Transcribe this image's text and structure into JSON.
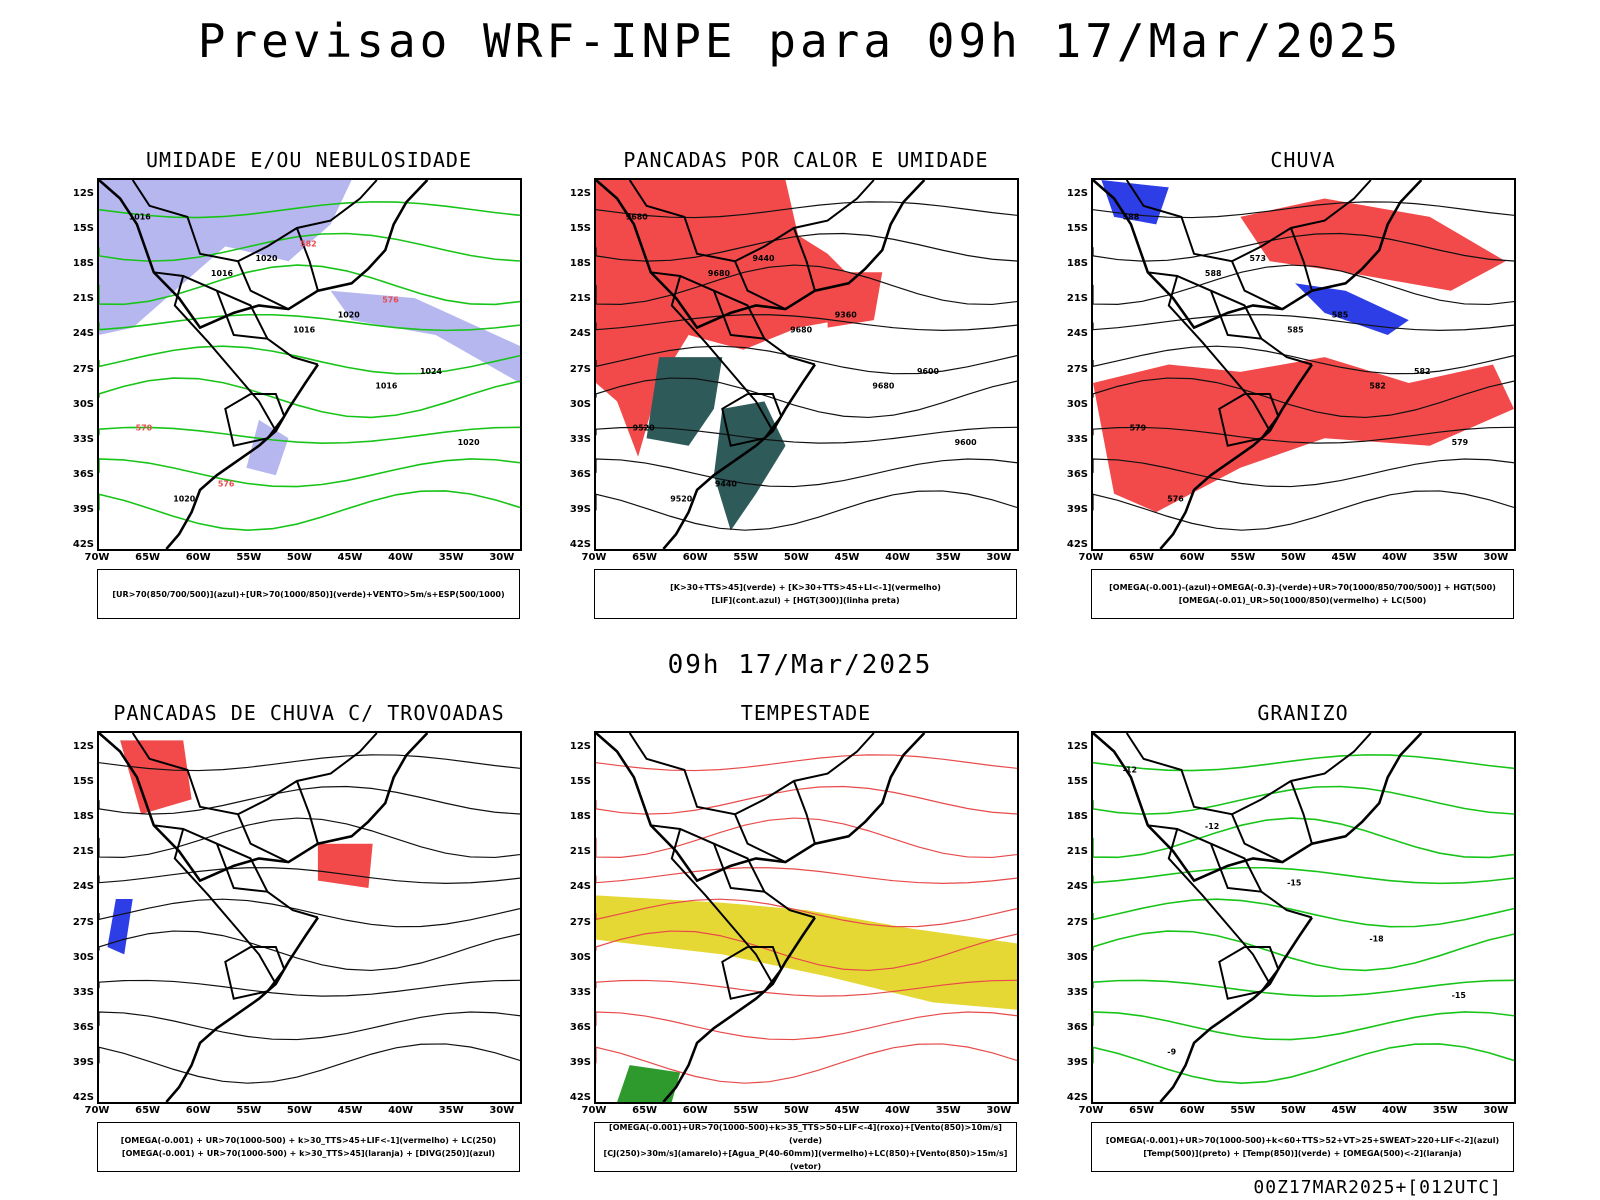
{
  "title": "Previsao WRF-INPE  para 09h 17/Mar/2025",
  "mid_title": "09h 17/Mar/2025",
  "footer": "00Z17MAR2025+[012UTC]",
  "lat_labels": [
    "12S",
    "15S",
    "18S",
    "21S",
    "24S",
    "27S",
    "30S",
    "33S",
    "36S",
    "39S",
    "42S"
  ],
  "lon_labels": [
    "70W",
    "65W",
    "60W",
    "55W",
    "50W",
    "45W",
    "40W",
    "35W",
    "30W"
  ],
  "panels": [
    {
      "title": "UMIDADE E/OU NEBULOSIDADE",
      "legend": [
        "[UR>70(850/700/500)](azul)+[UR>70(1000/850)](verde)+VENTO>5m/s+ESP(500/1000)"
      ],
      "contour_labels": [
        "1016",
        "1016",
        "1016",
        "1016",
        "1020",
        "1020",
        "1020",
        "1020",
        "1024",
        "570",
        "576",
        "582",
        "576"
      ]
    },
    {
      "title": "PANCADAS POR CALOR E UMIDADE",
      "legend": [
        "[K>30+TTS>45](verde) + [K>30+TTS>45+LI<-1](vermelho)",
        "[LIF](cont.azul) + [HGT(300)](linha preta)"
      ],
      "contour_labels": [
        "9680",
        "9680",
        "9680",
        "9680",
        "9600",
        "9520",
        "9440",
        "9360",
        "9600",
        "9520",
        "9440"
      ]
    },
    {
      "title": "CHUVA",
      "legend": [
        "[OMEGA(-0.001)-(azul)+OMEGA(-0.3)-(verde)+UR>70(1000/850/700/500)] + HGT(500)",
        "[OMEGA(-0.01)_UR>50(1000/850)(vermelho) + LC(500)"
      ],
      "contour_labels": [
        "588",
        "588",
        "585",
        "582",
        "579",
        "576",
        "573",
        "585",
        "582",
        "579"
      ]
    },
    {
      "title": "PANCADAS DE CHUVA C/ TROVOADAS",
      "legend": [
        "[OMEGA(-0.001) + UR>70(1000-500) + k>30_TTS>45+LIF<-1](vermelho) + LC(250)",
        "[OMEGA(-0.001) + UR>70(1000-500) + k>30_TTS>45](laranja) + [DIVG(250)](azul)"
      ],
      "contour_labels": []
    },
    {
      "title": "TEMPESTADE",
      "legend": [
        "[OMEGA(-0.001)+UR>70(1000-500)+k>35_TTS>50+LIF<-4](roxo)+[Vento(850)>10m/s](verde)",
        "[CJ(250)>30m/s](amarelo)+[Agua_P(40-60mm)](vermelho)+LC(850)+[Vento(850)>15m/s](vetor)"
      ],
      "contour_labels": []
    },
    {
      "title": "GRANIZO",
      "legend": [
        "[OMEGA(-0.001)+UR>70(1000-500)+k<60+TTS>52+VT>25+SWEAT>220+LIF<-2](azul)",
        "[Temp(500)](preto) + [Temp(850)](verde) + [OMEGA(500)<-2](laranja)"
      ],
      "contour_labels": [
        "-12",
        "-12",
        "-15",
        "-18",
        "-15",
        "-9"
      ]
    }
  ]
}
